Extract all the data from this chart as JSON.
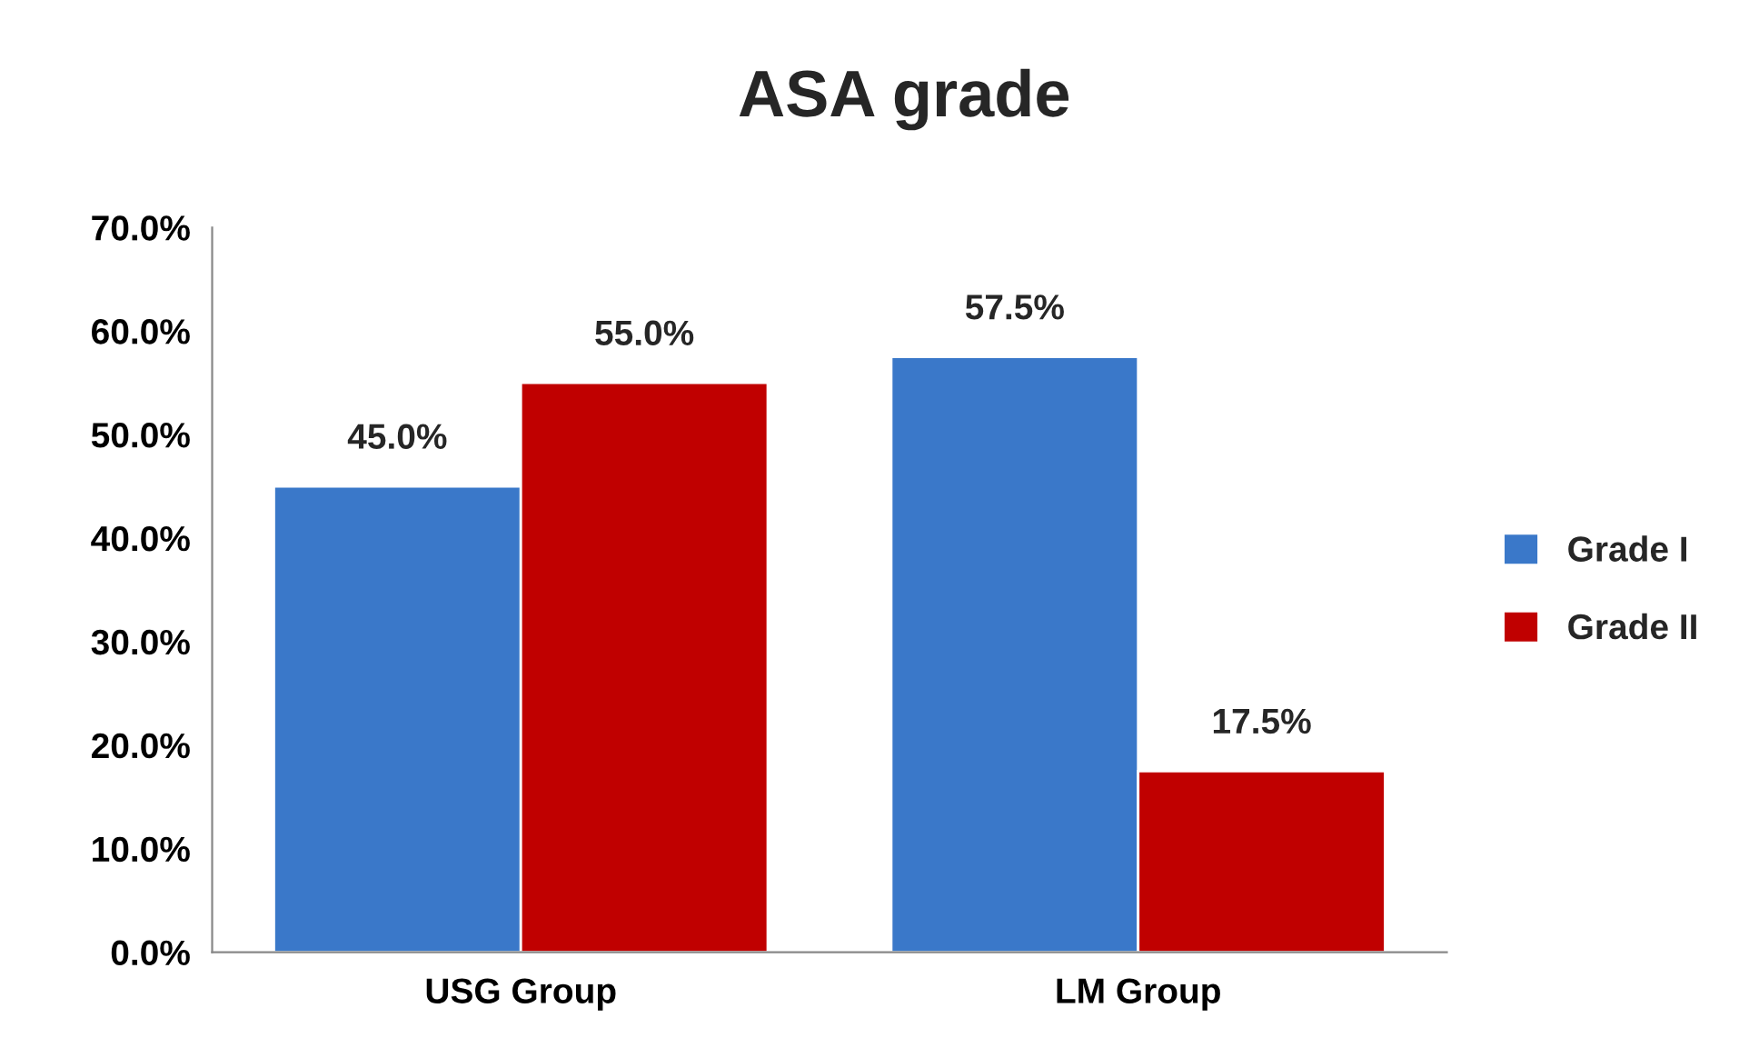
{
  "chart_data": {
    "type": "bar",
    "title": "ASA grade",
    "categories": [
      "USG Group",
      "LM Group"
    ],
    "series": [
      {
        "name": "Grade I",
        "color": "#3a78c9",
        "values": [
          45.0,
          57.5
        ],
        "value_labels": [
          "45.0%",
          "57.5%"
        ]
      },
      {
        "name": "Grade II",
        "color": "#c00000",
        "values": [
          55.0,
          17.5
        ],
        "value_labels": [
          "55.0%",
          "17.5%"
        ]
      }
    ],
    "ylim": [
      0,
      70
    ],
    "yticks": [
      {
        "value": 0,
        "label": "0.0%"
      },
      {
        "value": 10,
        "label": "10.0%"
      },
      {
        "value": 20,
        "label": "20.0%"
      },
      {
        "value": 30,
        "label": "30.0%"
      },
      {
        "value": 40,
        "label": "40.0%"
      },
      {
        "value": 50,
        "label": "50.0%"
      },
      {
        "value": 60,
        "label": "60.0%"
      },
      {
        "value": 70,
        "label": "70.0%"
      }
    ],
    "grid": false,
    "legend": "right"
  }
}
